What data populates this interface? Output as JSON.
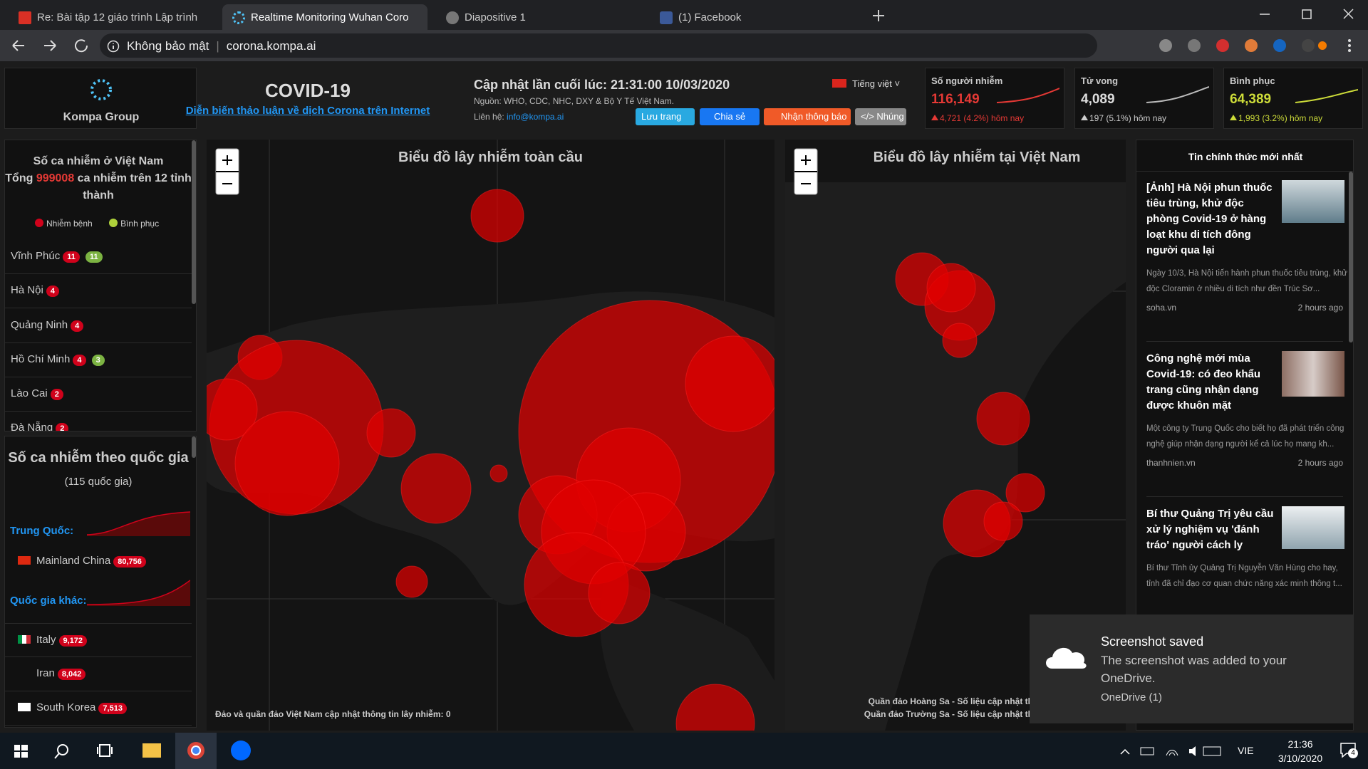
{
  "browser": {
    "tabs": [
      {
        "title": "Re: Bài tập 12 giáo trình Lập trình"
      },
      {
        "title": "Realtime Monitoring Wuhan Coro"
      },
      {
        "title": "Diapositive 1"
      },
      {
        "title": "(1) Facebook"
      }
    ],
    "address": {
      "security": "Không bảo mật",
      "url": "corona.kompa.ai"
    }
  },
  "header": {
    "brand": "Kompa Group",
    "title": "COVID-19",
    "link": "Diễn biến thảo luận về dịch Corona trên Internet",
    "updated": "Cập nhật lần cuối lúc: 21:31:00 10/03/2020",
    "source": "Nguồn: WHO, CDC, NHC, DXY & Bộ Y Tế Việt Nam.",
    "contact_label": "Liên hệ:",
    "email": "info@kompa.ai",
    "language": "Tiếng việt",
    "buttons": [
      "Lưu trang",
      "Chia sẻ",
      "Nhận thông báo",
      "</> Nhúng"
    ]
  },
  "stats": [
    {
      "label": "Số người nhiễm",
      "value": "116,149",
      "change": "4,721 (4.2%) hôm nay"
    },
    {
      "label": "Tử vong",
      "value": "4,089",
      "change": "197 (5.1%) hôm nay"
    },
    {
      "label": "Bình phục",
      "value": "64,389",
      "change": "1,993 (3.2%) hôm nay"
    }
  ],
  "vietnam": {
    "title": "Số ca nhiễm ở Việt Nam",
    "total_label": "Tổng",
    "total": "999008",
    "total_suffix": "ca nhiễm trên 12 tỉnh thành",
    "legend": [
      "Nhiễm bệnh",
      "Bình phục"
    ],
    "provinces": [
      {
        "name": "Vĩnh Phúc",
        "infected": "11",
        "recovered": "11"
      },
      {
        "name": "Hà Nội",
        "infected": "4"
      },
      {
        "name": "Quảng Ninh",
        "infected": "4"
      },
      {
        "name": "Hồ Chí Minh",
        "infected": "4",
        "recovered": "3"
      },
      {
        "name": "Lào Cai",
        "infected": "2"
      },
      {
        "name": "Đà Nẵng",
        "infected": "2"
      }
    ]
  },
  "countries": {
    "title": "Số ca nhiễm theo quốc gia",
    "count": "(115 quốc gia)",
    "china_label": "Trung Quốc:",
    "china": {
      "name": "Mainland China",
      "cases": "80,756"
    },
    "others_label": "Quốc gia khác:",
    "others": [
      {
        "name": "Italy",
        "cases": "9,172"
      },
      {
        "name": "Iran",
        "cases": "8,042"
      },
      {
        "name": "South Korea",
        "cases": "7,513"
      }
    ]
  },
  "maps": {
    "global_title": "Biểu đồ lây nhiễm toàn cầu",
    "global_note": "Đảo và quần đảo Việt Nam cập nhật thông tin lây nhiễm: 0",
    "vietnam_title": "Biểu đồ lây nhiễm tại Việt Nam",
    "vietnam_notes": [
      "Quần đảo Hoàng Sa - Số liệu cập nhật th",
      "Quần đảo Trường Sa - Số liệu cập nhật th"
    ]
  },
  "news": {
    "header": "Tin chính thức mới nhất",
    "items": [
      {
        "title": "[Ảnh] Hà Nội phun thuốc tiêu trùng, khử độc phòng Covid-19 ở hàng loạt khu di tích đông người qua lại",
        "summary": "Ngày 10/3, Hà Nội tiến hành phun thuốc tiêu trùng, khử độc Cloramin ở nhiều di tích như đền Trúc Sơ...",
        "source": "soha.vn",
        "time": "2 hours ago"
      },
      {
        "title": "Công nghệ mới mùa Covid-19: có đeo khẩu trang cũng nhận dạng được khuôn mặt",
        "summary": "Một công ty Trung Quốc cho biết họ đã phát triển công nghệ giúp nhận dạng người kể cả lúc họ mang kh...",
        "source": "thanhnien.vn",
        "time": "2 hours ago"
      },
      {
        "title": "Bí thư Quảng Trị yêu cầu xử lý nghiệm vụ 'đánh tráo' người cách ly",
        "summary": "Bí thư Tỉnh ủy Quảng Trị Nguyễn Văn Hùng cho hay, tỉnh đã chỉ đạo cơ quan chức năng xác minh thông t..."
      }
    ]
  },
  "toast": {
    "title": "Screenshot saved",
    "body": "The screenshot was added to your OneDrive.",
    "footer": "OneDrive (1)"
  },
  "taskbar": {
    "language": "VIE",
    "time": "21:36",
    "date": "3/10/2020",
    "notifications": "4"
  }
}
